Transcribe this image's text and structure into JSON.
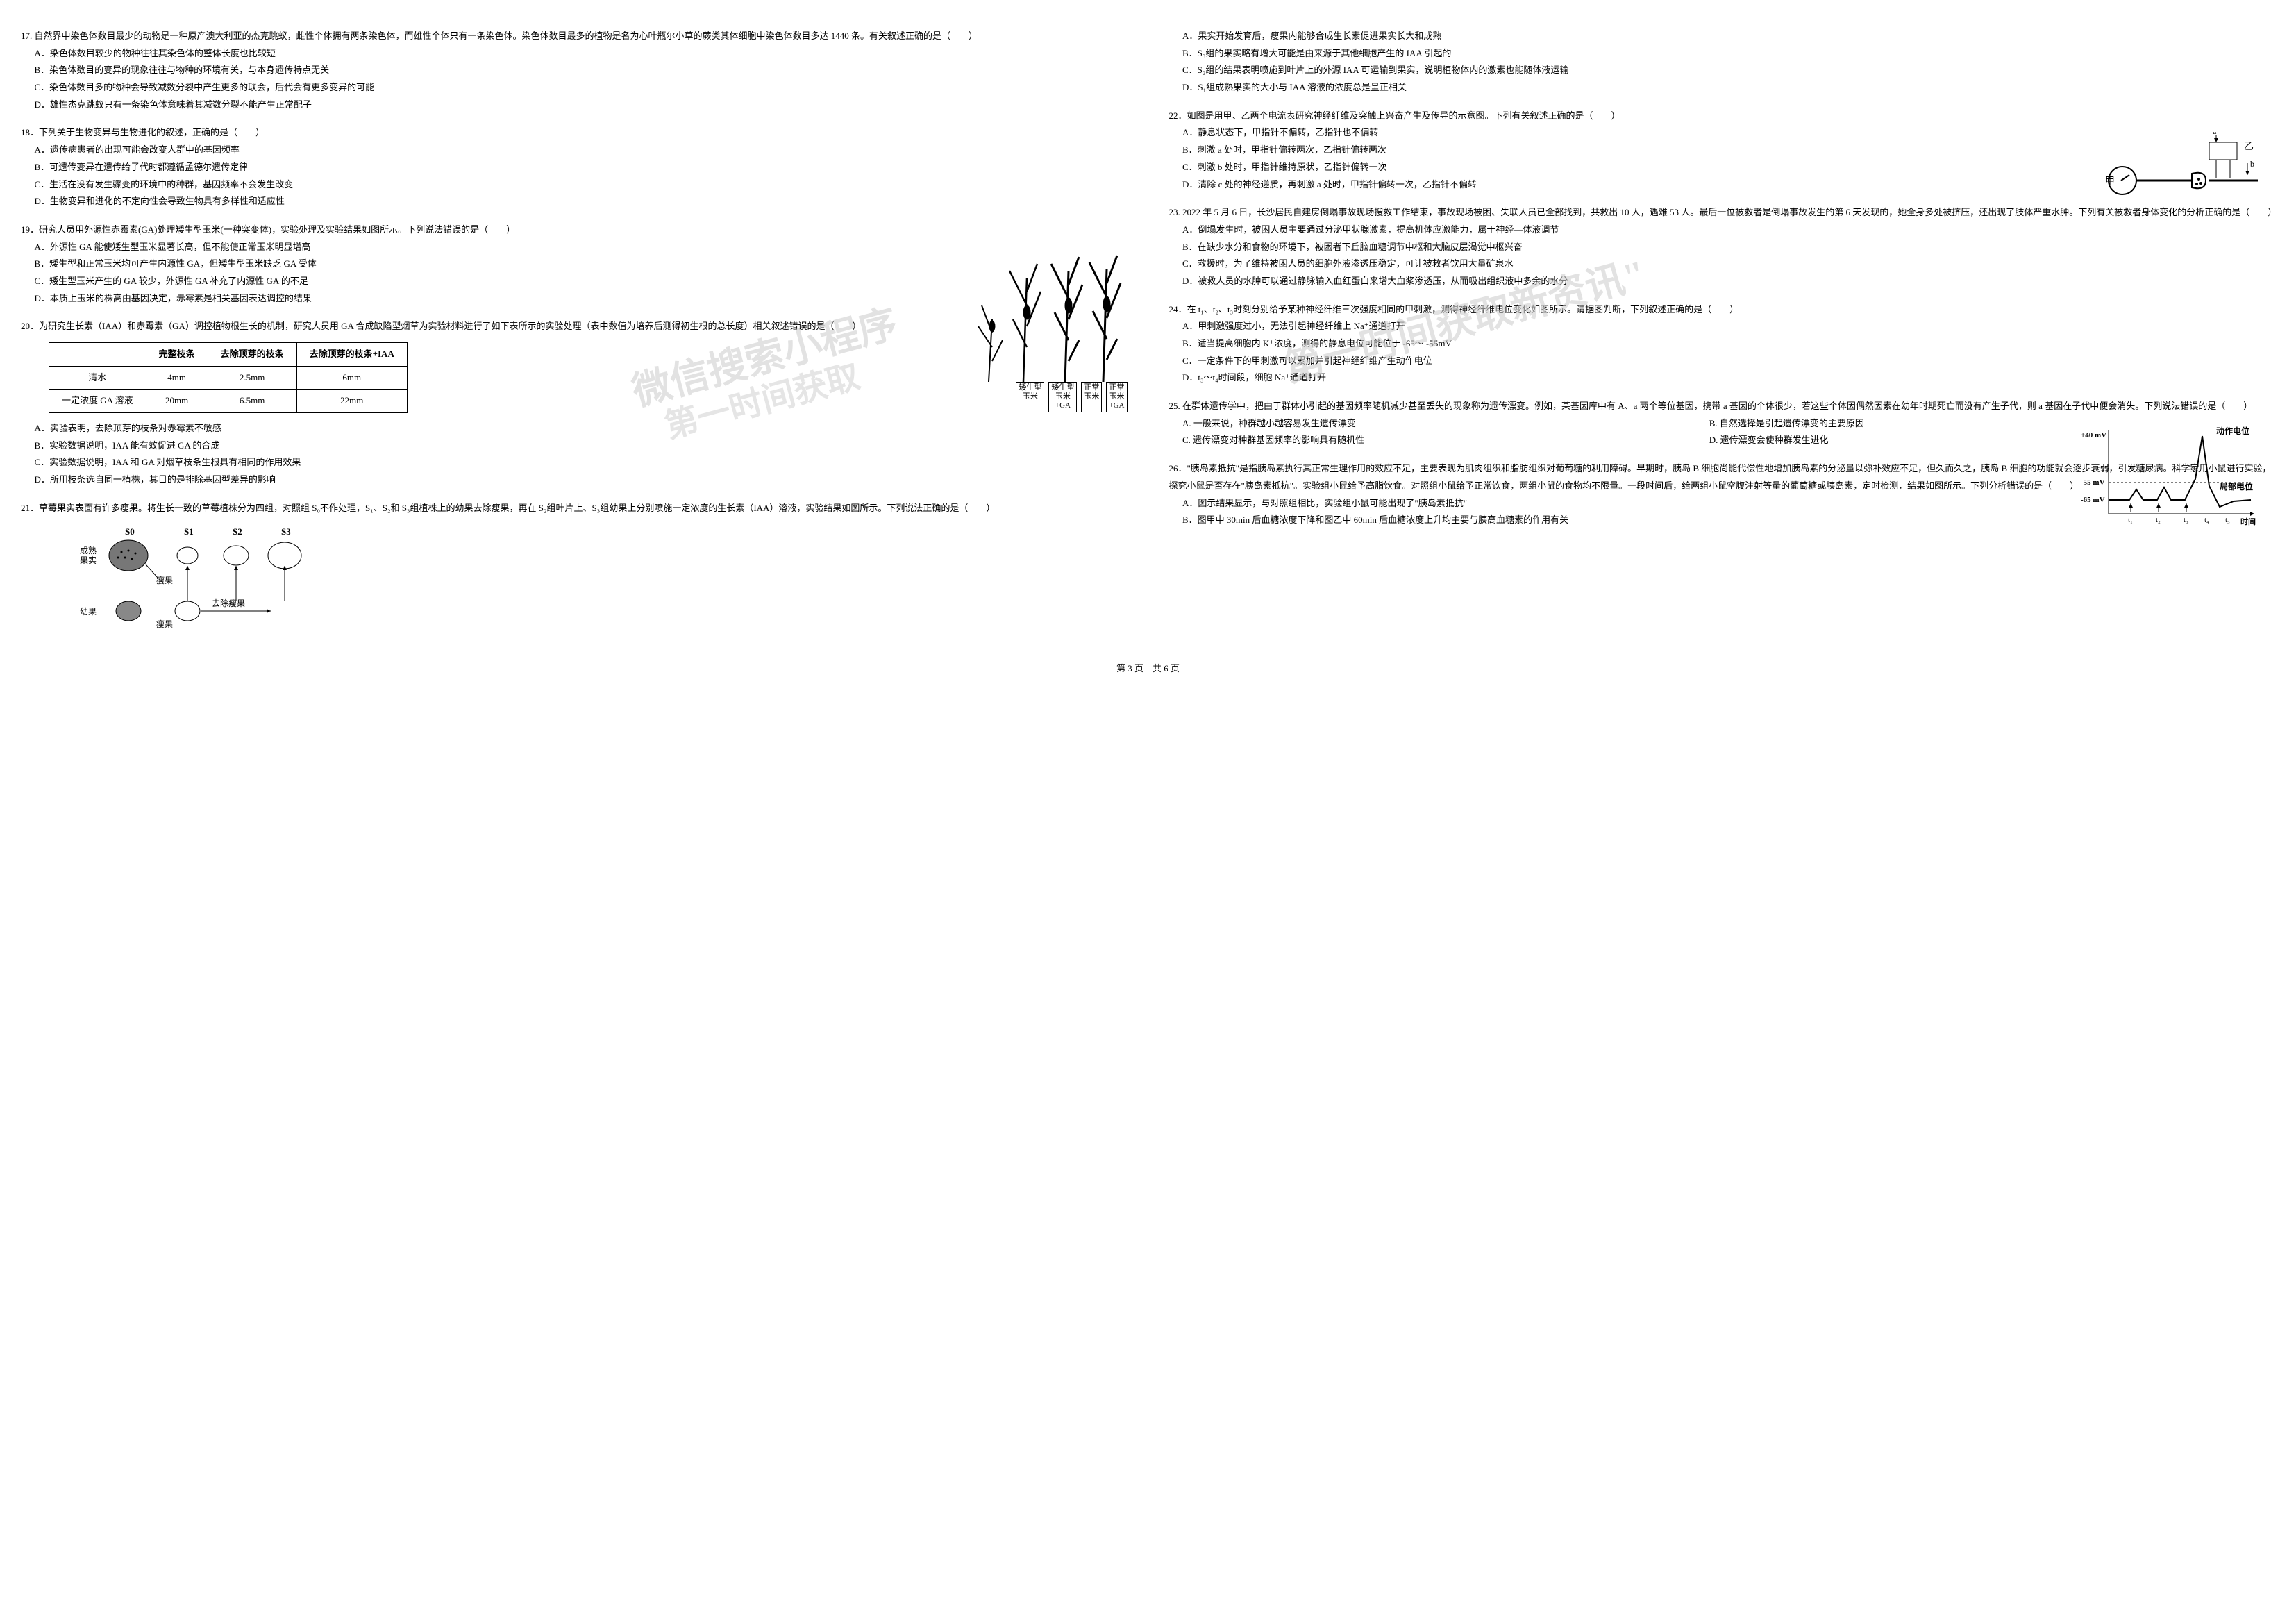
{
  "leftColumn": {
    "q17": {
      "stem": "17. 自然界中染色体数目最少的动物是一种原产澳大利亚的杰克跳蚁，雌性个体拥有两条染色体，而雄性个体只有一条染色体。染色体数目最多的植物是名为心叶瓶尔小草的蕨类其体细胞中染色体数目多达 1440 条。有关叙述正确的是（　　）",
      "A": "A．染色体数目较少的物种往往其染色体的整体长度也比较短",
      "B": "B．染色体数目的变异的现象往往与物种的环境有关，与本身遗传特点无关",
      "C": "C．染色体数目多的物种会导致减数分裂中产生更多的联会，后代会有更多变异的可能",
      "D": "D．雄性杰克跳蚁只有一条染色体意味着其减数分裂不能产生正常配子"
    },
    "q18": {
      "stem": "18．下列关于生物变异与生物进化的叙述，正确的是（　　）",
      "A": "A．遗传病患者的出现可能会改变人群中的基因频率",
      "B": "B．可遗传变异在遗传给子代时都遵循孟德尔遗传定律",
      "C": "C．生活在没有发生骤变的环境中的种群，基因频率不会发生改变",
      "D": "D．生物变异和进化的不定向性会导致生物具有多样性和适应性"
    },
    "q19": {
      "stem": "19．研究人员用外源性赤霉素(GA)处理矮生型玉米(一种突变体)，实验处理及实验结果如图所示。下列说法错误的是（　　）",
      "A": "A．外源性 GA 能使矮生型玉米显著长高，但不能使正常玉米明显增高",
      "B": "B．矮生型和正常玉米均可产生内源性 GA，但矮生型玉米缺乏 GA 受体",
      "C": "C．矮生型玉米产生的 GA 较少，外源性 GA 补充了内源性 GA 的不足",
      "D": "D．本质上玉米的株高由基因决定，赤霉素是相关基因表达调控的结果"
    },
    "plantLabels": [
      "矮生型\n玉米",
      "矮生型\n玉米\n+GA",
      "正常\n玉米",
      "正常\n玉米\n+GA"
    ],
    "q20": {
      "stem": "20．为研究生长素（IAA）和赤霉素（GA）调控植物根生长的机制，研究人员用 GA 合成缺陷型烟草为实验材料进行了如下表所示的实验处理（表中数值为培养后测得初生根的总长度）相关叙述错误的是（　　）",
      "tableHeaders": [
        "",
        "完整枝条",
        "去除顶芽的枝条",
        "去除顶芽的枝条+IAA"
      ],
      "tableRows": [
        [
          "清水",
          "4mm",
          "2.5mm",
          "6mm"
        ],
        [
          "一定浓度 GA 溶液",
          "20mm",
          "6.5mm",
          "22mm"
        ]
      ],
      "A": "A．实验表明，去除顶芽的枝条对赤霉素不敏感",
      "B": "B．实验数据说明，IAA 能有效促进 GA 的合成",
      "C": "C．实验数据说明，IAA 和 GA 对烟草枝条生根具有相同的作用效果",
      "D": "D．所用枝条选自同一植株，其目的是排除基因型差异的影响"
    },
    "q21": {
      "stem": "21．草莓果实表面有许多瘦果。将生长一致的草莓植株分为四组，对照组 S₀不作处理，S₁、S₂和 S₃组植株上的幼果去除瘦果，再在 S₂组叶片上、S₃组幼果上分别喷施一定浓度的生长素（IAA）溶液，实验结果如图所示。下列说法正确的是（　　）",
      "figLabels": {
        "S0": "S0",
        "S1": "S1",
        "S2": "S2",
        "S3": "S3",
        "mature": "成熟\n果实",
        "thin": "瘦果",
        "young": "幼果",
        "arrow": "去除瘦果"
      }
    },
    "watermark1": "微信搜索小程序",
    "watermark2": "第一时间获取"
  },
  "rightColumn": {
    "q21opts": {
      "A": "A．果实开始发育后，瘦果内能够合成生长素促进果实长大和成熟",
      "B": "B．S₃组的果实略有增大可能是由来源于其他细胞产生的 IAA 引起的",
      "C": "C．S₂组的结果表明喷施到叶片上的外源 IAA 可运输到果实，说明植物体内的激素也能随体液运输",
      "D": "D．S₁组成熟果实的大小与 IAA 溶液的浓度总是呈正相关"
    },
    "q22": {
      "stem": "22．如图是用甲、乙两个电流表研究神经纤维及突触上兴奋产生及传导的示意图。下列有关叙述正确的是（　　）",
      "A": "A．静息状态下，甲指针不偏转，乙指针也不偏转",
      "B": "B．刺激 a 处时，甲指针偏转两次，乙指针偏转两次",
      "C": "C．刺激 b 处时，甲指针维持原状，乙指针偏转一次",
      "D": "D．清除 c 处的神经递质，再刺激 a 处时，甲指针偏转一次，乙指针不偏转",
      "figLabels": {
        "jia": "甲",
        "yi": "乙",
        "a": "a",
        "b": "b"
      }
    },
    "q23": {
      "stem": "23. 2022 年 5 月 6 日，长沙居民自建房倒塌事故现场搜救工作结束，事故现场被困、失联人员已全部找到，共救出 10 人，遇难 53 人。最后一位被救者是倒塌事故发生的第 6 天发现的，她全身多处被挤压，还出现了肢体严重水肿。下列有关被救者身体变化的分析正确的是（　　）",
      "A": "A．倒塌发生时，被困人员主要通过分泌甲状腺激素，提高机体应激能力，属于神经—体液调节",
      "B": "B．在缺少水分和食物的环境下，被困者下丘脑血糖调节中枢和大脑皮层渴觉中枢兴奋",
      "C": "C．救援时，为了维持被困人员的细胞外液渗透压稳定，可让被救者饮用大量矿泉水",
      "D": "D．被救人员的水肿可以通过静脉输入血红蛋白来增大血浆渗透压，从而吸出组织液中多余的水分"
    },
    "q24": {
      "stem": "24．在 t₁、t₂、t₃时刻分别给予某种神经纤维三次强度相同的甲刺激，测得神经纤维电位变化如图所示。请据图判断，下列叙述正确的是（　　）",
      "A": "A．甲刺激强度过小，无法引起神经纤维上 Na⁺通道打开",
      "B": "B．适当提高细胞内 K⁺浓度，测得的静息电位可能位于 -65～ -55mV",
      "C": "C．一定条件下的甲刺激可以累加并引起神经纤维产生动作电位",
      "D": "D．t₃～t₄时间段，细胞 Na⁺通道打开",
      "figLabels": {
        "ap": "动作电位",
        "rp": "局部电位",
        "v40": "+40 mV",
        "vn55": "-55 mV",
        "vn65": "-65 mV",
        "t1": "t₁",
        "t2": "t₂",
        "t3": "t₃",
        "t4": "t₄",
        "t5": "t₅",
        "time": "时间"
      }
    },
    "q25": {
      "stem": "25. 在群体遗传学中，把由于群体小引起的基因频率随机减少甚至丢失的现象称为遗传漂变。例如，某基因库中有 A、a 两个等位基因，携带 a 基因的个体很少，若这些个体因偶然因素在幼年时期死亡而没有产生子代，则 a 基因在子代中便会消失。下列说法错误的是（　　）",
      "A": "A. 一般来说，种群越小越容易发生遗传漂变",
      "B": "B. 自然选择是引起遗传漂变的主要原因",
      "C": "C. 遗传漂变对种群基因频率的影响具有随机性",
      "D": "D. 遗传漂变会使种群发生进化"
    },
    "q26": {
      "stem": "26．\"胰岛素抵抗\"是指胰岛素执行其正常生理作用的效应不足，主要表现为肌肉组织和脂肪组织对葡萄糖的利用障碍。早期时，胰岛 B 细胞尚能代偿性地增加胰岛素的分泌量以弥补效应不足，但久而久之，胰岛 B 细胞的功能就会逐步衰弱，引发糖尿病。科学家用小鼠进行实验，探究小鼠是否存在\"胰岛素抵抗\"。实验组小鼠给予高脂饮食。对照组小鼠给予正常饮食，两组小鼠的食物均不限量。一段时间后，给两组小鼠空腹注射等量的葡萄糖或胰岛素，定时检测，结果如图所示。下列分析错误的是（　　）",
      "A": "A．图示结果显示，与对照组相比，实验组小鼠可能出现了\"胰岛素抵抗\"",
      "B": "B．图甲中 30min 后血糖浓度下降和图乙中 60min 后血糖浓度上升均主要与胰高血糖素的作用有关"
    },
    "watermark": "第一时间获取新资讯\""
  },
  "footer": "第 3 页　共 6 页",
  "colors": {
    "text": "#000000",
    "background": "#ffffff",
    "watermark": "#d0d0d0",
    "border": "#000000"
  }
}
